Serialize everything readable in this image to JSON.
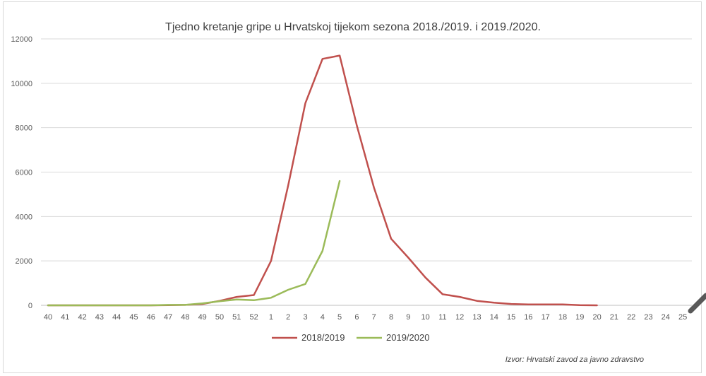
{
  "chart_data": {
    "type": "line",
    "title": "Tjedno kretanje gripe u Hrvatskoj tijekom sezona 2018./2019. i 2019./2020.",
    "xlabel": "",
    "ylabel": "",
    "ylim": [
      0,
      12000
    ],
    "yticks": [
      0,
      2000,
      4000,
      6000,
      8000,
      10000,
      12000
    ],
    "categories": [
      "40",
      "41",
      "42",
      "43",
      "44",
      "45",
      "46",
      "47",
      "48",
      "49",
      "50",
      "51",
      "52",
      "1",
      "2",
      "3",
      "4",
      "5",
      "6",
      "7",
      "8",
      "9",
      "10",
      "11",
      "12",
      "13",
      "14",
      "15",
      "16",
      "17",
      "18",
      "19",
      "20",
      "21",
      "22",
      "23",
      "24",
      "25"
    ],
    "grid": true,
    "legend_position": "bottom",
    "series": [
      {
        "name": "2018/2019",
        "color": "#c0504d",
        "values": [
          0,
          0,
          0,
          0,
          0,
          0,
          0,
          10,
          20,
          60,
          200,
          380,
          460,
          2000,
          5400,
          9100,
          11100,
          11250,
          8100,
          5300,
          3000,
          2150,
          1250,
          500,
          380,
          200,
          120,
          60,
          40,
          40,
          40,
          10,
          0,
          null,
          null,
          null,
          null,
          null
        ]
      },
      {
        "name": "2019/2020",
        "color": "#9bbb59",
        "values": [
          0,
          0,
          0,
          0,
          0,
          0,
          0,
          20,
          20,
          90,
          180,
          260,
          230,
          340,
          700,
          960,
          2450,
          5600,
          null,
          null,
          null,
          null,
          null,
          null,
          null,
          null,
          null,
          null,
          null,
          null,
          null,
          null,
          null,
          null,
          null,
          null,
          null,
          null
        ]
      }
    ]
  },
  "source_note": "Izvor: Hrvatski zavod za javno zdravstvo"
}
